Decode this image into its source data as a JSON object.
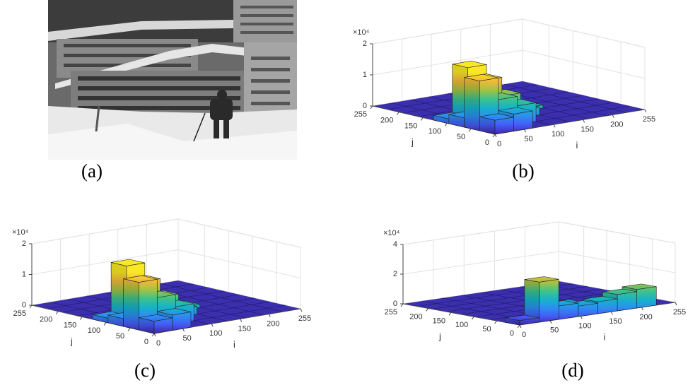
{
  "labels": [
    "(a)",
    "(b)",
    "(c)",
    "(d)"
  ],
  "chart_data": [
    {
      "type": "bar3d",
      "xlabel": "i",
      "ylabel": "j",
      "zscale_label": "×10⁴",
      "xlim": [
        0,
        255
      ],
      "ylim": [
        0,
        255
      ],
      "zlim": [
        0,
        20000
      ],
      "xticks": [
        0,
        50,
        100,
        150,
        200,
        255
      ],
      "yticks": [
        0,
        50,
        100,
        150,
        200,
        255
      ],
      "zticks": [
        0,
        {
          "value": 10000,
          "label": "1"
        },
        {
          "value": 20000,
          "label": "2"
        }
      ],
      "bars": [
        {
          "i": 16,
          "j": 16,
          "value": 4500
        },
        {
          "i": 48,
          "j": 16,
          "value": 5500
        },
        {
          "i": 16,
          "j": 48,
          "value": 16000
        },
        {
          "i": 48,
          "j": 48,
          "value": 9000
        },
        {
          "i": 48,
          "j": 80,
          "value": 14000
        },
        {
          "i": 48,
          "j": 112,
          "value": 17000
        },
        {
          "i": 80,
          "j": 48,
          "value": 6000
        },
        {
          "i": 80,
          "j": 80,
          "value": 8000
        },
        {
          "i": 80,
          "j": 112,
          "value": 5000
        },
        {
          "i": 112,
          "j": 80,
          "value": 2500
        },
        {
          "i": 112,
          "j": 112,
          "value": 2000
        },
        {
          "i": 144,
          "j": 112,
          "value": 1000
        },
        {
          "i": 16,
          "j": 80,
          "value": 3000
        },
        {
          "i": 16,
          "j": 112,
          "value": 1500
        }
      ]
    },
    {
      "type": "bar3d",
      "xlabel": "i",
      "ylabel": "j",
      "zscale_label": "×10⁴",
      "xlim": [
        0,
        255
      ],
      "ylim": [
        0,
        255
      ],
      "zlim": [
        0,
        20000
      ],
      "xticks": [
        0,
        50,
        100,
        150,
        200,
        255
      ],
      "yticks": [
        0,
        50,
        100,
        150,
        200,
        255
      ],
      "zticks": [
        0,
        {
          "value": 10000,
          "label": "1"
        },
        {
          "value": 20000,
          "label": "2"
        }
      ],
      "bars": [
        {
          "i": 16,
          "j": 16,
          "value": 4000
        },
        {
          "i": 48,
          "j": 16,
          "value": 5000
        },
        {
          "i": 16,
          "j": 48,
          "value": 15500
        },
        {
          "i": 48,
          "j": 48,
          "value": 9500
        },
        {
          "i": 48,
          "j": 80,
          "value": 13500
        },
        {
          "i": 48,
          "j": 112,
          "value": 17500
        },
        {
          "i": 80,
          "j": 48,
          "value": 5500
        },
        {
          "i": 80,
          "j": 80,
          "value": 7500
        },
        {
          "i": 80,
          "j": 112,
          "value": 4500
        },
        {
          "i": 112,
          "j": 80,
          "value": 2500
        },
        {
          "i": 112,
          "j": 112,
          "value": 2000
        },
        {
          "i": 144,
          "j": 112,
          "value": 1000
        },
        {
          "i": 16,
          "j": 80,
          "value": 2500
        },
        {
          "i": 16,
          "j": 112,
          "value": 1500
        }
      ]
    },
    {
      "type": "bar3d",
      "xlabel": "i",
      "ylabel": "j",
      "zscale_label": "×10⁴",
      "xlim": [
        0,
        255
      ],
      "ylim": [
        0,
        255
      ],
      "zlim": [
        0,
        40000
      ],
      "xticks": [
        0,
        50,
        100,
        150,
        200,
        255
      ],
      "yticks": [
        0,
        50,
        100,
        150,
        200,
        255
      ],
      "zticks": [
        0,
        {
          "value": 20000,
          "label": "2"
        },
        {
          "value": 40000,
          "label": "4"
        }
      ],
      "bars": [
        {
          "i": 16,
          "j": 16,
          "value": 3000
        },
        {
          "i": 48,
          "j": 16,
          "value": 27000
        },
        {
          "i": 80,
          "j": 16,
          "value": 9000
        },
        {
          "i": 112,
          "j": 16,
          "value": 7000
        },
        {
          "i": 144,
          "j": 16,
          "value": 8000
        },
        {
          "i": 176,
          "j": 16,
          "value": 11000
        },
        {
          "i": 208,
          "j": 16,
          "value": 12500
        },
        {
          "i": 112,
          "j": 48,
          "value": 6000
        },
        {
          "i": 176,
          "j": 48,
          "value": 5000
        },
        {
          "i": 80,
          "j": 48,
          "value": 4000
        }
      ]
    }
  ]
}
